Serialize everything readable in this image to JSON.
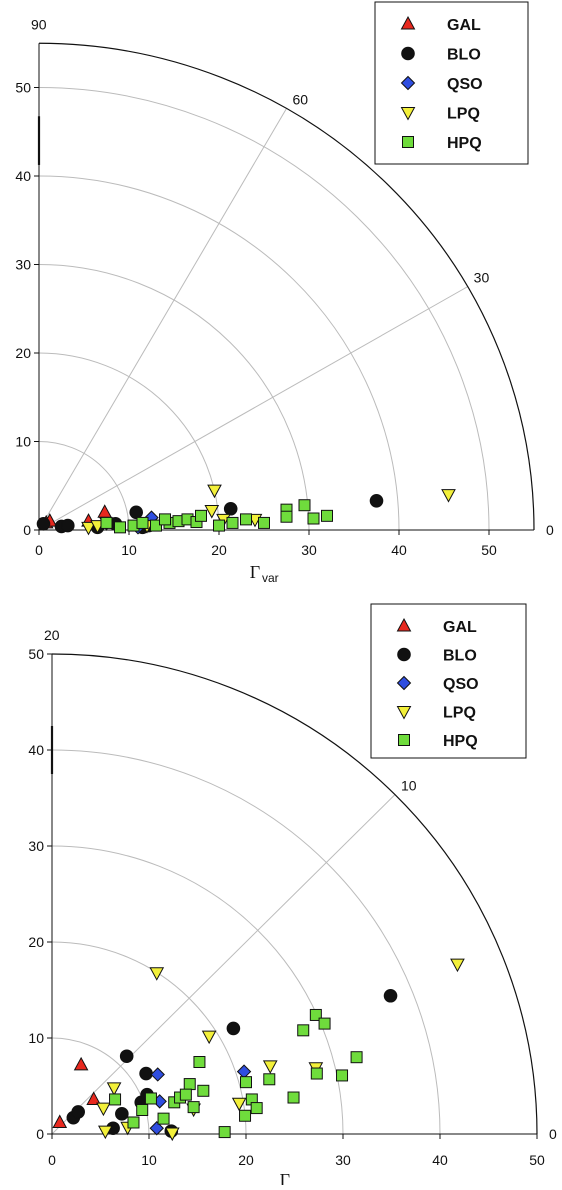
{
  "chart_data": [
    {
      "type": "scatter",
      "coordinate_system": "polar-quadrant",
      "xlabel_main": "Γ",
      "xlabel_sub": "var",
      "r_max": 55,
      "x_ticks": [
        "0",
        "10",
        "20",
        "30",
        "40",
        "50"
      ],
      "y_ticks": [
        "0",
        "10",
        "20",
        "30",
        "40",
        "50"
      ],
      "angle_max_label": "90",
      "angle_labels": [
        "60",
        "30",
        "0"
      ],
      "angle_values": [
        60,
        30
      ],
      "arc_radii": [
        10,
        20,
        30,
        40,
        50
      ],
      "legend_position": "top-right",
      "colors": {
        "GAL": "#e8281e",
        "BLO": "#111111",
        "QSO": "#2f4ee0",
        "LPQ": "#f3f03a",
        "HPQ": "#6fdc3c"
      },
      "series": [
        {
          "name": "GAL",
          "marker": "triangle-up",
          "points": [
            [
              0.8,
              0.8
            ],
            [
              1.2,
              1.0
            ],
            [
              5.5,
              1.0
            ],
            [
              7.3,
              2.0
            ]
          ]
        },
        {
          "name": "BLO",
          "marker": "circle",
          "points": [
            [
              0.5,
              0.7
            ],
            [
              2.5,
              0.4
            ],
            [
              3.2,
              0.5
            ],
            [
              6.5,
              0.3
            ],
            [
              8.5,
              0.7
            ],
            [
              10.8,
              2.0
            ],
            [
              11.5,
              0.3
            ],
            [
              12.2,
              0.5
            ],
            [
              21.3,
              2.4
            ],
            [
              37.5,
              3.3
            ]
          ]
        },
        {
          "name": "QSO",
          "marker": "diamond",
          "points": [
            [
              11.0,
              0.3
            ],
            [
              12.5,
              1.4
            ]
          ]
        },
        {
          "name": "LPQ",
          "marker": "triangle-down",
          "points": [
            [
              5.5,
              0.3
            ],
            [
              6.5,
              0.5
            ],
            [
              7.5,
              0.8
            ],
            [
              12.0,
              0.5
            ],
            [
              19.5,
              4.5
            ],
            [
              19.2,
              2.2
            ],
            [
              20.5,
              1.2
            ],
            [
              24.0,
              1.2
            ],
            [
              45.5,
              4.0
            ]
          ]
        },
        {
          "name": "HPQ",
          "marker": "square",
          "points": [
            [
              7.5,
              0.8
            ],
            [
              9.0,
              0.3
            ],
            [
              10.5,
              0.5
            ],
            [
              11.5,
              0.8
            ],
            [
              13.0,
              0.5
            ],
            [
              14.5,
              0.8
            ],
            [
              15.5,
              1.0
            ],
            [
              16.5,
              1.2
            ],
            [
              17.5,
              0.9
            ],
            [
              18.0,
              1.6
            ],
            [
              20.0,
              0.5
            ],
            [
              21.5,
              0.8
            ],
            [
              23.0,
              1.2
            ],
            [
              25.0,
              0.8
            ],
            [
              27.5,
              2.3
            ],
            [
              29.5,
              2.8
            ],
            [
              30.5,
              1.3
            ],
            [
              32.0,
              1.6
            ],
            [
              27.5,
              1.5
            ],
            [
              14.0,
              1.2
            ]
          ]
        }
      ]
    },
    {
      "type": "scatter",
      "coordinate_system": "polar-quadrant",
      "xlabel_main": "Γ",
      "r_max": 50,
      "x_ticks": [
        "0",
        "10",
        "20",
        "30",
        "40",
        "50"
      ],
      "y_ticks": [
        "0",
        "10",
        "20",
        "30",
        "40",
        "50"
      ],
      "angle_max_label": "20",
      "angle_labels": [
        "10",
        "0"
      ],
      "angle_values": [
        10
      ],
      "arc_radii": [
        10,
        20,
        30,
        40
      ],
      "legend_position": "top-right",
      "colors": {
        "GAL": "#e8281e",
        "BLO": "#111111",
        "QSO": "#2f4ee0",
        "LPQ": "#f3f03a",
        "HPQ": "#6fdc3c"
      },
      "series": [
        {
          "name": "GAL",
          "marker": "triangle-up",
          "points": [
            [
              0.8,
              1.2
            ],
            [
              3.0,
              7.2
            ],
            [
              4.3,
              3.6
            ]
          ]
        },
        {
          "name": "BLO",
          "marker": "circle",
          "points": [
            [
              2.2,
              1.7
            ],
            [
              2.7,
              2.3
            ],
            [
              6.3,
              0.6
            ],
            [
              7.2,
              2.1
            ],
            [
              7.7,
              8.1
            ],
            [
              9.2,
              3.3
            ],
            [
              9.7,
              6.3
            ],
            [
              9.8,
              4.1
            ],
            [
              12.3,
              0.3
            ],
            [
              18.7,
              11.0
            ],
            [
              34.9,
              14.4
            ]
          ]
        },
        {
          "name": "QSO",
          "marker": "diamond",
          "points": [
            [
              10.8,
              0.6
            ],
            [
              10.9,
              6.2
            ],
            [
              11.1,
              3.4
            ],
            [
              19.8,
              6.5
            ]
          ]
        },
        {
          "name": "LPQ",
          "marker": "triangle-down",
          "points": [
            [
              5.3,
              2.7
            ],
            [
              5.5,
              0.3
            ],
            [
              6.4,
              4.8
            ],
            [
              7.8,
              0.7
            ],
            [
              10.8,
              16.8
            ],
            [
              12.4,
              0.1
            ],
            [
              14.6,
              2.6
            ],
            [
              16.2,
              10.2
            ],
            [
              19.3,
              3.2
            ],
            [
              22.5,
              7.1
            ],
            [
              27.2,
              6.9
            ],
            [
              41.8,
              17.7
            ]
          ]
        },
        {
          "name": "HPQ",
          "marker": "square",
          "points": [
            [
              6.5,
              3.6
            ],
            [
              8.4,
              1.2
            ],
            [
              9.3,
              2.5
            ],
            [
              10.2,
              3.7
            ],
            [
              11.5,
              1.6
            ],
            [
              12.6,
              3.3
            ],
            [
              13.2,
              3.8
            ],
            [
              14.2,
              5.2
            ],
            [
              14.6,
              2.8
            ],
            [
              15.2,
              7.5
            ],
            [
              15.6,
              4.5
            ],
            [
              17.8,
              0.2
            ],
            [
              19.9,
              1.9
            ],
            [
              20.0,
              5.4
            ],
            [
              20.6,
              3.6
            ],
            [
              21.1,
              2.7
            ],
            [
              22.4,
              5.7
            ],
            [
              24.9,
              3.8
            ],
            [
              25.9,
              10.8
            ],
            [
              27.2,
              12.4
            ],
            [
              27.3,
              6.3
            ],
            [
              28.1,
              11.5
            ],
            [
              29.9,
              6.1
            ],
            [
              31.4,
              8.0
            ],
            [
              13.8,
              4.1
            ]
          ]
        }
      ]
    }
  ]
}
